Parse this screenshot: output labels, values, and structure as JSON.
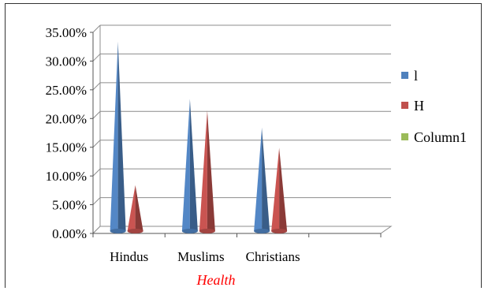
{
  "chart_data": {
    "type": "bar",
    "subtype": "3d-cone",
    "categories": [
      "Hindus",
      "Muslims",
      "Christians",
      ""
    ],
    "series": [
      {
        "name": "l",
        "color": "#4f81bd",
        "values": [
          33.0,
          23.0,
          18.0,
          null
        ]
      },
      {
        "name": "H",
        "color": "#c0504d",
        "values": [
          8.0,
          21.0,
          14.5,
          null
        ]
      },
      {
        "name": "Column1",
        "color": "#9bbb59",
        "values": [
          null,
          null,
          null,
          null
        ]
      }
    ],
    "title": "",
    "xlabel": "Health",
    "xlabel_color": "#ff0000",
    "ylabel": "",
    "ylim": [
      0,
      35
    ],
    "ytick_step": 5,
    "ytick_labels": [
      "0.00%",
      "5.00%",
      "10.00%",
      "15.00%",
      "20.00%",
      "25.00%",
      "30.00%",
      "35.00%"
    ],
    "grid": true,
    "legend_position": "right"
  }
}
